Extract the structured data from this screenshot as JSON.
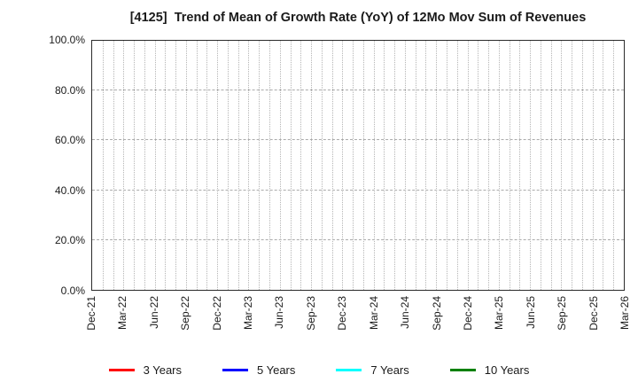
{
  "title": "[4125]  Trend of Mean of Growth Rate (YoY) of 12Mo Mov Sum of Revenues",
  "chart_data": {
    "type": "line",
    "title": "[4125]  Trend of Mean of Growth Rate (YoY) of 12Mo Mov Sum of Revenues",
    "xlabel": "",
    "ylabel": "",
    "ylim": [
      0,
      100
    ],
    "y_ticks": [
      0,
      20,
      40,
      60,
      80,
      100
    ],
    "y_tick_labels": [
      "0.0%",
      "20.0%",
      "40.0%",
      "60.0%",
      "80.0%",
      "100.0%"
    ],
    "x_tick_labels": [
      "Dec-21",
      "Mar-22",
      "Jun-22",
      "Sep-22",
      "Dec-22",
      "Mar-23",
      "Jun-23",
      "Sep-23",
      "Dec-23",
      "Mar-24",
      "Jun-24",
      "Sep-24",
      "Dec-24",
      "Mar-25",
      "Jun-25",
      "Sep-25",
      "Dec-25",
      "Mar-26"
    ],
    "minor_vgrid_intervals_per_major": 3,
    "grid": true,
    "legend_position": "bottom",
    "series": [
      {
        "name": "3 Years",
        "color": "#ff0000",
        "values": []
      },
      {
        "name": "5 Years",
        "color": "#0000ff",
        "values": []
      },
      {
        "name": "7 Years",
        "color": "#00ffff",
        "values": []
      },
      {
        "name": "10 Years",
        "color": "#008000",
        "values": []
      }
    ]
  },
  "colors": {
    "background": "#ffffff",
    "frame": "#2b2b2b",
    "grid_vertical": "#b5b5b5",
    "grid_horizontal": "#ababab",
    "text": "#1a1a1a"
  }
}
